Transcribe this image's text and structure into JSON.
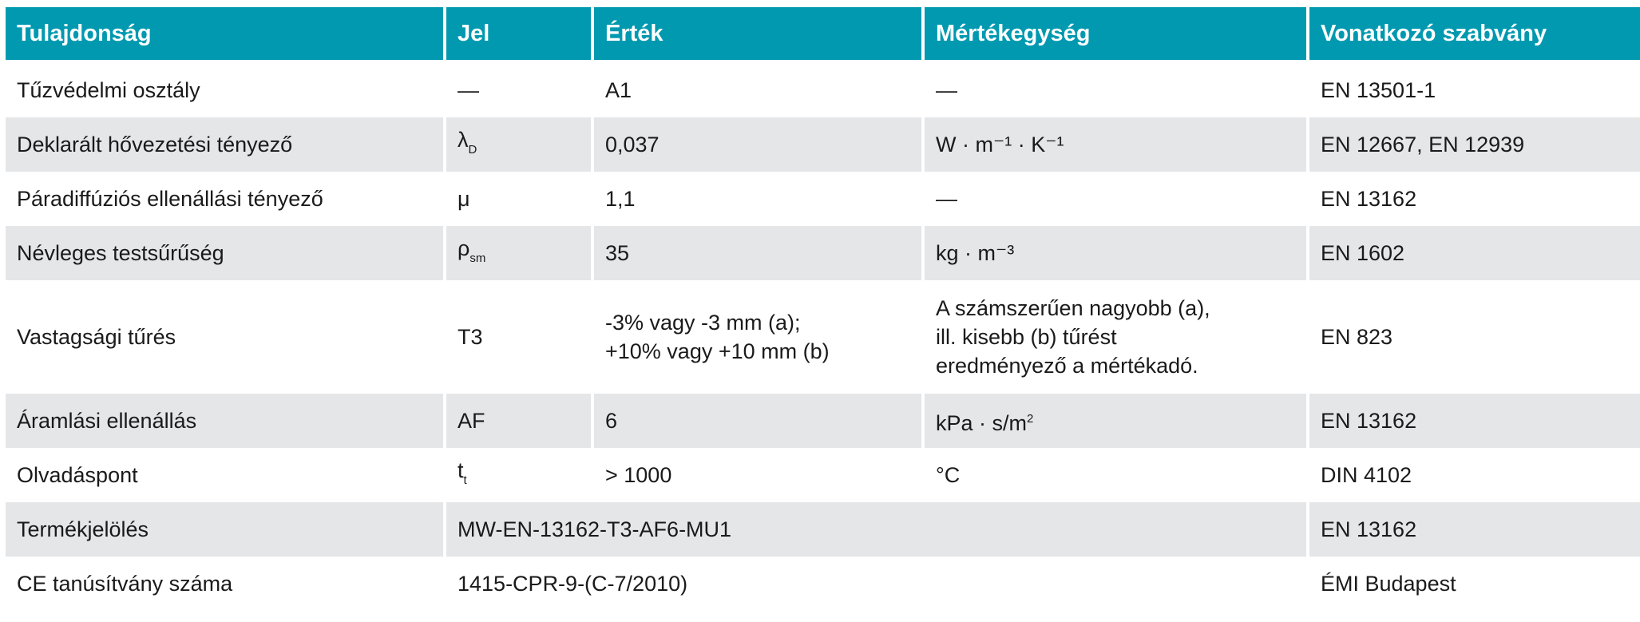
{
  "colors": {
    "header_bg": "#0099b0",
    "alt_row_bg": "#e5e6e8"
  },
  "headers": [
    "Tulajdonság",
    "Jel",
    "Érték",
    "Mértékegység",
    "Vonatkozó szabvány"
  ],
  "rows": [
    {
      "prop": "Tűzvédelmi osztály",
      "sym": "—",
      "sym_sub": "",
      "value": "A1",
      "unit": "—",
      "unit_sup": "",
      "std": "EN 13501-1"
    },
    {
      "prop": "Deklarált hővezetési tényező",
      "sym": "λ",
      "sym_sub": "D",
      "value": "0,037",
      "unit": "W · m⁻¹ · K⁻¹",
      "unit_sup": "",
      "std": "EN 12667, EN 12939"
    },
    {
      "prop": "Páradiffúziós ellenállási tényező",
      "sym": "μ",
      "sym_sub": "",
      "value": "1,1",
      "unit": "—",
      "unit_sup": "",
      "std": "EN 13162"
    },
    {
      "prop": "Névleges testsűrűség",
      "sym": "ρ",
      "sym_sub": "sm",
      "value": "35",
      "unit": "kg · m⁻³",
      "unit_sup": "",
      "std": "EN 1602"
    },
    {
      "prop": "Vastagsági tűrés",
      "sym": "T3",
      "sym_sub": "",
      "value_lines": [
        "-3% vagy -3 mm (a);",
        "+10% vagy +10 mm (b)"
      ],
      "unit_lines": [
        "A számszerűen nagyobb (a),",
        "ill. kisebb (b) tűrést",
        "eredményező a mértékadó."
      ],
      "std": "EN 823"
    },
    {
      "prop": "Áramlási ellenállás",
      "sym": "AF",
      "sym_sub": "",
      "value": "6",
      "unit": "kPa · s/m",
      "unit_sup": "2",
      "std": "EN 13162"
    },
    {
      "prop": "Olvadáspont",
      "sym": "t",
      "sym_sub": "t",
      "value": "> 1000",
      "unit": "°C",
      "unit_sup": "",
      "std": "DIN 4102"
    },
    {
      "prop": "Termékjelölés",
      "merged": "MW-EN-13162-T3-AF6-MU1",
      "std": "EN 13162"
    },
    {
      "prop": "CE tanúsítvány száma",
      "merged": "1415-CPR-9-(C-7/2010)",
      "std": "ÉMI Budapest"
    }
  ]
}
